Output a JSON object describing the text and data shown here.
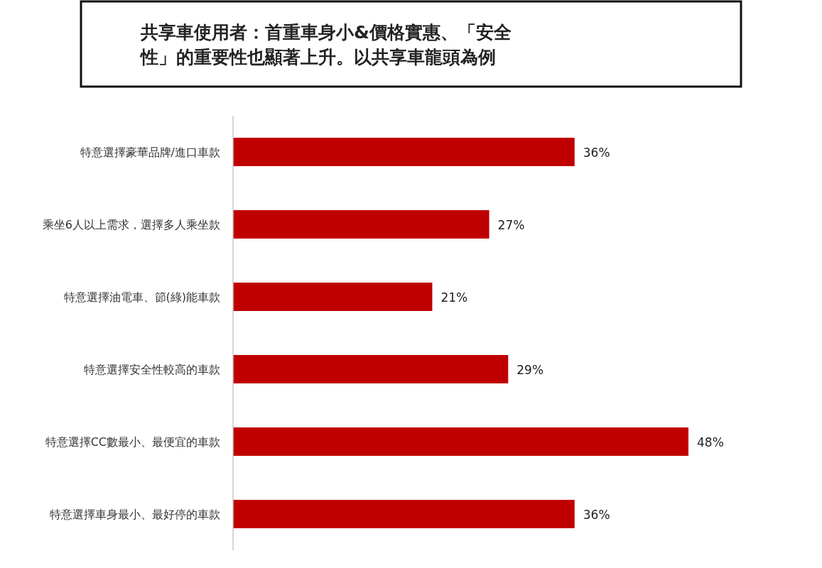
{
  "chart_data": {
    "type": "bar",
    "orientation": "horizontal",
    "title": "共享車使用者：首重車身小&價格實惠、「安全性」的重要性也顯著上升。以共享車龍頭為例",
    "categories": [
      "特意選擇豪華品牌/進口車款",
      "乘坐6人以上需求，選擇多人乘坐款",
      "特意選擇油電車、節(綠)能車款",
      "特意選擇安全性較高的車款",
      "特意選擇CC數最小、最便宜的車款",
      "特意選擇車身最小、最好停的車款"
    ],
    "values": [
      36,
      27,
      21,
      29,
      48,
      36
    ],
    "value_labels": [
      "36%",
      "27%",
      "21%",
      "29%",
      "48%",
      "36%"
    ],
    "color": "#c00000"
  }
}
